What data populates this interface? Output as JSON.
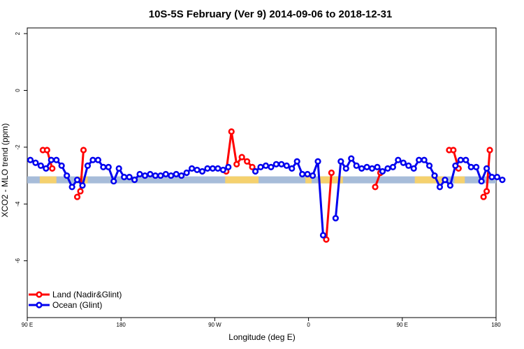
{
  "chart_data": {
    "type": "line",
    "title": "10S-5S February (Ver 9)   2014-09-06 to 2018-12-31",
    "xlabel": "Longitude (deg E)",
    "ylabel": "XCO2 - MLO trend (ppm)",
    "xlim": [
      90,
      540
    ],
    "ylim": [
      -8,
      2.2
    ],
    "x_ticks": [
      {
        "value": 90,
        "label": "90 E"
      },
      {
        "value": 180,
        "label": "180"
      },
      {
        "value": 270,
        "label": "90 W"
      },
      {
        "value": 360,
        "label": "0"
      },
      {
        "value": 450,
        "label": "90 E"
      },
      {
        "value": 540,
        "label": "180"
      }
    ],
    "y_ticks": [
      {
        "value": 2,
        "label": "2"
      },
      {
        "value": 0,
        "label": "0"
      },
      {
        "value": -2,
        "label": "-2"
      },
      {
        "value": -4,
        "label": "-4"
      },
      {
        "value": -6,
        "label": "-6"
      }
    ],
    "grid": false,
    "legend_position": "bottom-left",
    "colors": {
      "land": "#ff0000",
      "ocean": "#0000ee",
      "band_ocean": "#a7bcd9",
      "band_land": "#f5d16e"
    },
    "band_y": -3.15,
    "land_segments_x": [
      [
        102,
        118
      ],
      [
        138,
        148
      ],
      [
        280,
        312
      ],
      [
        357,
        363
      ],
      [
        369,
        393
      ],
      [
        462,
        490
      ],
      [
        500,
        510
      ]
    ],
    "series": [
      {
        "name": "Land (Nadir&Glint)",
        "color": "#ff0000",
        "segments": [
          {
            "x": [
              105,
              109,
              114
            ],
            "y": [
              -2.1,
              -2.1,
              -2.75
            ]
          },
          {
            "x": [
              138,
              141,
              144
            ],
            "y": [
              -3.75,
              -3.55,
              -2.1
            ]
          },
          {
            "x": [
              281,
              286,
              291,
              296,
              301,
              306
            ],
            "y": [
              -2.85,
              -1.45,
              -2.6,
              -2.35,
              -2.5,
              -2.7
            ]
          },
          {
            "x": [
              377,
              382
            ],
            "y": [
              -5.25,
              -2.9
            ]
          },
          {
            "x": [
              424,
              429
            ],
            "y": [
              -3.4,
              -2.9
            ]
          },
          {
            "x": [
              495,
              499,
              504
            ],
            "y": [
              -2.1,
              -2.1,
              -2.75
            ]
          },
          {
            "x": [
              528,
              531,
              534
            ],
            "y": [
              -3.75,
              -3.55,
              -2.1
            ]
          }
        ]
      },
      {
        "name": "Ocean (Glint)",
        "color": "#0000ee",
        "segments": [
          {
            "x": [
              93,
              98,
              103,
              108,
              113,
              118,
              123,
              128,
              133,
              138,
              143,
              148,
              153,
              158,
              163,
              168,
              173,
              178,
              183,
              188,
              193,
              198,
              203,
              208,
              213,
              218,
              223,
              228,
              233,
              238,
              243,
              248,
              253,
              258,
              263,
              268,
              273,
              278,
              283
            ],
            "y": [
              -2.45,
              -2.55,
              -2.65,
              -2.75,
              -2.45,
              -2.45,
              -2.65,
              -3.0,
              -3.4,
              -3.15,
              -3.35,
              -2.65,
              -2.45,
              -2.45,
              -2.7,
              -2.7,
              -3.2,
              -2.75,
              -3.05,
              -3.05,
              -3.15,
              -2.95,
              -3.0,
              -2.95,
              -3.0,
              -3.0,
              -2.95,
              -3.0,
              -2.95,
              -3.0,
              -2.9,
              -2.75,
              -2.8,
              -2.85,
              -2.75,
              -2.75,
              -2.75,
              -2.8,
              -2.7
            ]
          },
          {
            "x": [
              309,
              314,
              319,
              324,
              329,
              334,
              339,
              344,
              349,
              354,
              359,
              364,
              369,
              374
            ],
            "y": [
              -2.85,
              -2.7,
              -2.65,
              -2.7,
              -2.6,
              -2.6,
              -2.65,
              -2.75,
              -2.5,
              -2.95,
              -2.95,
              -3.0,
              -2.5,
              -5.1
            ]
          },
          {
            "x": [
              386,
              391,
              396,
              401,
              406,
              411,
              416,
              421,
              426,
              431,
              436,
              441,
              446,
              451,
              456,
              461,
              466,
              471,
              476,
              481,
              486,
              491,
              496,
              501,
              506,
              511,
              516,
              521,
              526,
              531,
              536,
              541,
              546
            ],
            "y": [
              -4.5,
              -2.5,
              -2.75,
              -2.4,
              -2.65,
              -2.75,
              -2.7,
              -2.75,
              -2.7,
              -2.85,
              -2.75,
              -2.7,
              -2.45,
              -2.55,
              -2.65,
              -2.75,
              -2.45,
              -2.45,
              -2.65,
              -3.0,
              -3.4,
              -3.15,
              -3.35,
              -2.65,
              -2.45,
              -2.45,
              -2.7,
              -2.7,
              -3.2,
              -2.75,
              -3.05,
              -3.05,
              -3.15
            ]
          }
        ]
      }
    ]
  }
}
